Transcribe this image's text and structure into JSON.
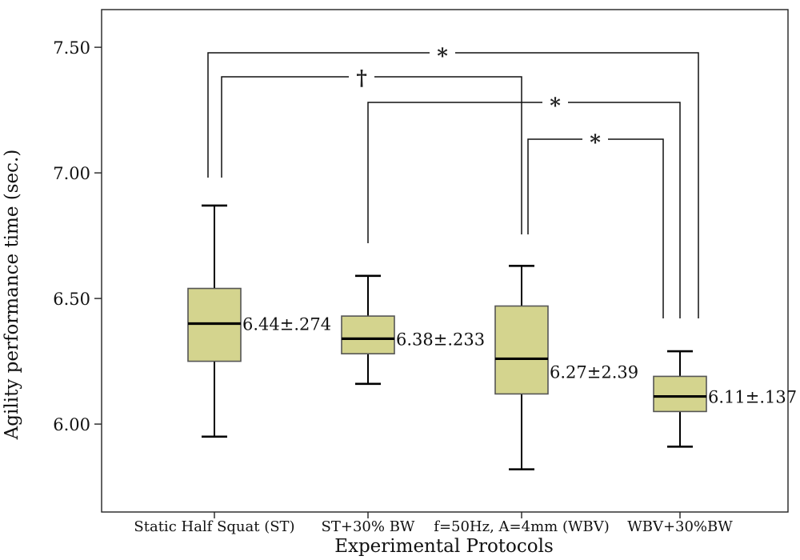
{
  "chart_data": {
    "type": "box",
    "xlabel": "Experimental Protocols",
    "ylabel": "Agility performance time (sec.)",
    "ylim": [
      5.65,
      7.65
    ],
    "yticks": [
      "7.50",
      "7.00",
      "6.50",
      "6.00"
    ],
    "ytick_values": [
      7.5,
      7.0,
      6.5,
      6.0
    ],
    "categories": [
      "Static Half Squat (ST)",
      "ST+30% BW",
      "f=50Hz, A=4mm (WBV)",
      "WBV+30%BW"
    ],
    "boxes": [
      {
        "min": 5.95,
        "q1": 6.25,
        "median": 6.4,
        "q3": 6.54,
        "max": 6.87,
        "label": "6.44±.274"
      },
      {
        "min": 6.16,
        "q1": 6.28,
        "median": 6.34,
        "q3": 6.43,
        "max": 6.59,
        "label": "6.38±.233"
      },
      {
        "min": 5.82,
        "q1": 6.12,
        "median": 6.26,
        "q3": 6.47,
        "max": 6.63,
        "label": "6.27±2.39"
      },
      {
        "min": 5.91,
        "q1": 6.05,
        "median": 6.11,
        "q3": 6.19,
        "max": 6.29,
        "label": "6.11±.137"
      }
    ],
    "box_color": "#d4d48e",
    "significance": [
      {
        "from": 0,
        "to": 3,
        "symbol": "*"
      },
      {
        "from": 0,
        "to": 2,
        "symbol": "†"
      },
      {
        "from": 1,
        "to": 3,
        "symbol": "*"
      },
      {
        "from": 2,
        "to": 3,
        "symbol": "*"
      }
    ]
  }
}
